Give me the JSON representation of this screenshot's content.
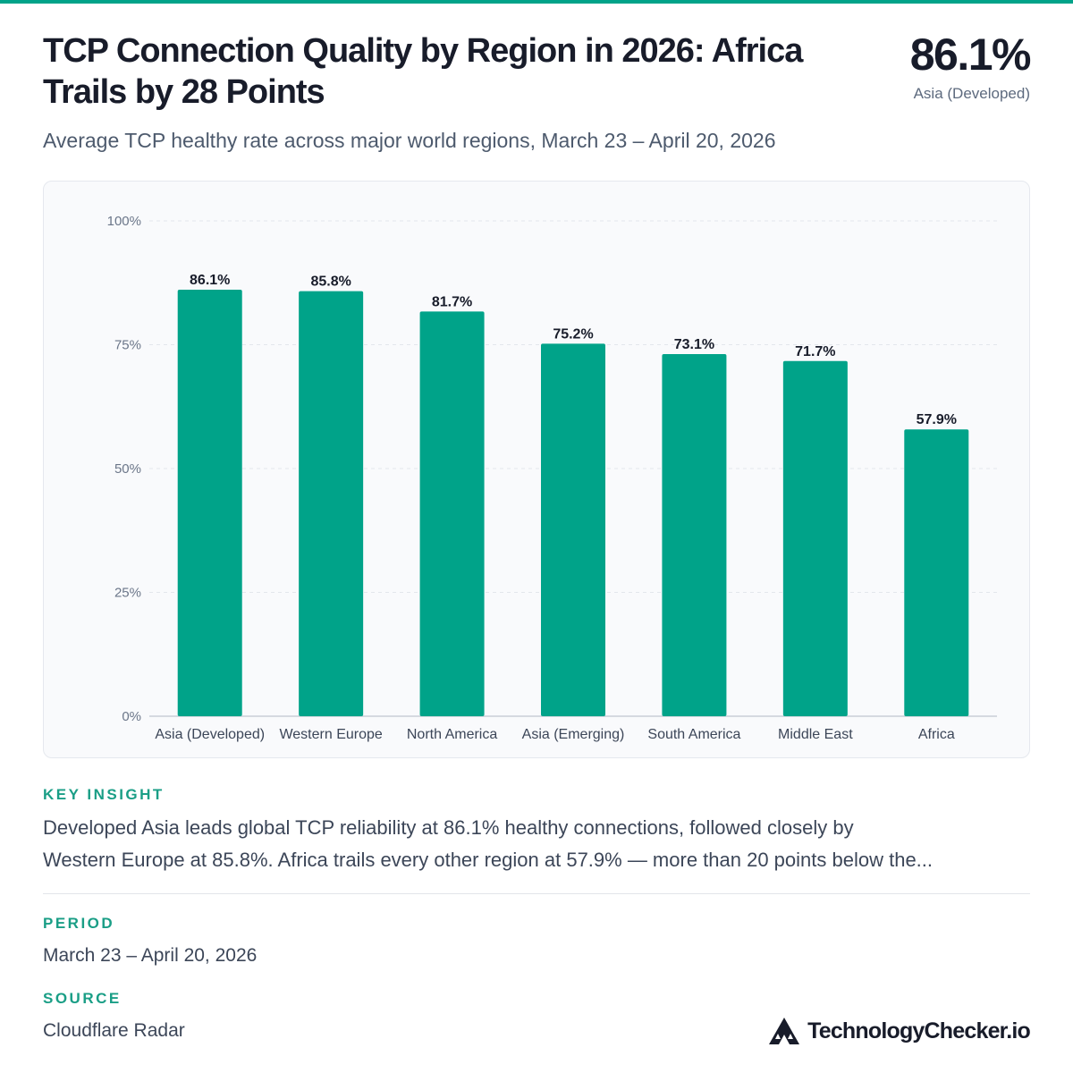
{
  "header": {
    "title_line1": "TCP Connection Quality by Region in 2026: Africa",
    "title_line2": "Trails by 28 Points",
    "subtitle": "Average TCP healthy rate across major world regions, March 23 – April 20, 2026",
    "kpi_value": "86.1%",
    "kpi_label": "Asia (Developed)"
  },
  "chart_data": {
    "type": "bar",
    "categories": [
      "Asia (Developed)",
      "Western Europe",
      "North America",
      "Asia (Emerging)",
      "South America",
      "Middle East",
      "Africa"
    ],
    "values": [
      86.1,
      85.8,
      81.7,
      75.2,
      73.1,
      71.7,
      57.9
    ],
    "value_labels": [
      "86.1%",
      "85.8%",
      "81.7%",
      "75.2%",
      "73.1%",
      "71.7%",
      "57.9%"
    ],
    "ylim": [
      0,
      100
    ],
    "yticks": [
      0,
      25,
      50,
      75,
      100
    ],
    "ytick_labels": [
      "0%",
      "25%",
      "50%",
      "75%",
      "100%"
    ],
    "grid": true,
    "bar_color": "#00a389"
  },
  "insight": {
    "label": "KEY INSIGHT",
    "line1": "Developed Asia leads global TCP reliability at 86.1% healthy connections, followed closely by",
    "line2": "Western Europe at 85.8%. Africa trails every other region at 57.9% — more than 20 points below the..."
  },
  "period": {
    "label": "PERIOD",
    "value": "March 23 – April 20, 2026"
  },
  "source": {
    "label": "SOURCE",
    "value": "Cloudflare Radar"
  },
  "brand": {
    "name": "TechnologyChecker.io",
    "icon": "triangle-logo-icon"
  },
  "colors": {
    "accent": "#00a389",
    "title": "#181c2a",
    "muted": "#5d6a7e"
  }
}
